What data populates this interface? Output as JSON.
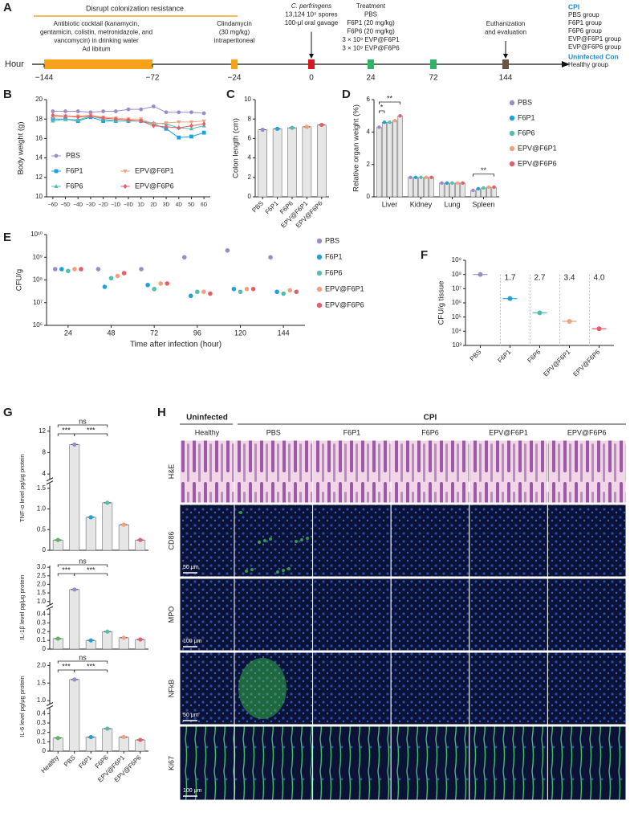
{
  "panel_labels": [
    "A",
    "B",
    "C",
    "D",
    "E",
    "F",
    "G",
    "H"
  ],
  "timeline": {
    "axis_label": "Hour",
    "ticks": [
      {
        "value": -144,
        "label": "−144"
      },
      {
        "value": -72,
        "label": "−72"
      },
      {
        "value": -24,
        "label": "−24"
      },
      0,
      24,
      72,
      144
    ],
    "phase": {
      "title": "Disrupt colonization resistance",
      "range": [
        -144,
        -72
      ],
      "color": "#f5a31a",
      "lines": [
        "Antibiotic cocktail (kanamycin,",
        "gentamicin, colistin, metronidazole, and",
        "vancomycin) in drinking water",
        "Ad libitum"
      ]
    },
    "events": [
      {
        "hour": -24,
        "color": "#f5a31a",
        "lines": [
          "Clindamycin",
          "(30 mg/kg)",
          "intraperitoneal"
        ]
      },
      {
        "hour": 0,
        "color": "#d7191c",
        "lines": [
          "C. perfringens",
          "13,124 10⁹ spores",
          "100-μl oral gavage"
        ]
      },
      {
        "hour": 24,
        "color": "#2fb36b",
        "lines": [
          "Treatment",
          "PBS",
          "F6P1 (20 mg/kg)",
          "F6P6 (20 mg/kg)",
          "3 × 10⁹ EVP@F6P1",
          "3 × 10⁹ EVP@F6P6"
        ]
      },
      {
        "hour": 72,
        "color": "#2fb36b"
      },
      {
        "hour": 144,
        "color": "#6b5443",
        "lines": [
          "Euthanization",
          "and evaluation"
        ]
      }
    ],
    "legend": [
      {
        "heading": "CPI",
        "color": "#1a8bd0",
        "items": [
          "PBS group",
          "F6P1 group",
          "F6P6 group",
          "EVP@F6P1 group",
          "EVP@F6P6 group"
        ]
      },
      {
        "heading": "Uninfected Con",
        "color": "#1a8bd0",
        "items": [
          "Healthy group"
        ]
      }
    ]
  },
  "chart_data": [
    {
      "type": "line",
      "y_label": "Body weight (g)",
      "categories": [
        "−6D",
        "−5D",
        "−4D",
        "−3D",
        "−2D",
        "−1D",
        "−0D",
        "1D",
        "2D",
        "3D",
        "4D",
        "5D",
        "6D"
      ],
      "ylim": [
        10,
        20
      ],
      "yticks": [
        10,
        12,
        14,
        16,
        18,
        20
      ],
      "series": [
        {
          "name": "PBS",
          "color": "#9d8bc9",
          "marker": "circle",
          "values": [
            18.8,
            18.8,
            18.8,
            18.7,
            18.8,
            18.8,
            19.0,
            19.0,
            19.3,
            18.7,
            18.7,
            18.7,
            18.6
          ]
        },
        {
          "name": "F6P1",
          "color": "#1fa2dc",
          "marker": "square",
          "values": [
            18.0,
            18.0,
            17.8,
            18.2,
            17.8,
            17.8,
            17.8,
            17.8,
            17.5,
            17.0,
            16.1,
            16.2,
            16.6
          ]
        },
        {
          "name": "F6P6",
          "color": "#52bdb0",
          "marker": "triangle",
          "values": [
            17.8,
            18.0,
            17.9,
            18.3,
            18.0,
            17.8,
            17.8,
            17.8,
            17.6,
            17.5,
            17.1,
            17.0,
            17.3
          ]
        },
        {
          "name": "EPV@F6P1",
          "color": "#f3a07c",
          "marker": "triangle-down",
          "values": [
            18.2,
            18.3,
            18.3,
            18.4,
            18.2,
            18.1,
            18.0,
            18.0,
            17.5,
            17.6,
            17.7,
            17.7,
            17.8
          ]
        },
        {
          "name": "EPV@F6P6",
          "color": "#e35f6a",
          "marker": "diamond",
          "values": [
            18.4,
            18.3,
            18.2,
            18.3,
            18.1,
            18.0,
            17.9,
            17.8,
            17.3,
            17.2,
            17.1,
            17.3,
            17.5
          ]
        }
      ]
    },
    {
      "type": "bar",
      "y_label": "Colon length (cm)",
      "categories": [
        "PBS",
        "F6P1",
        "F6P6",
        "EPV@F6P1",
        "EPV@F6P6"
      ],
      "values": [
        6.9,
        7.0,
        7.1,
        7.2,
        7.4
      ],
      "colors": [
        "#9d8bc9",
        "#1fa2dc",
        "#52bdb0",
        "#f3a07c",
        "#e35f6a"
      ],
      "ylim": [
        0,
        10
      ],
      "yticks": [
        0,
        2,
        4,
        6,
        8,
        10
      ]
    },
    {
      "type": "bar",
      "y_label": "Relative organ weight (%)",
      "categories": [
        "Liver",
        "Kidney",
        "Lung",
        "Spleen"
      ],
      "ylim": [
        0,
        6
      ],
      "yticks": [
        0,
        2,
        4,
        6
      ],
      "annotations": [
        "*",
        "**",
        "**"
      ],
      "series": [
        {
          "name": "PBS",
          "color": "#9d8bc9",
          "values": [
            4.3,
            1.2,
            0.85,
            0.4
          ]
        },
        {
          "name": "F6P1",
          "color": "#1fa2dc",
          "values": [
            4.6,
            1.2,
            0.85,
            0.5
          ]
        },
        {
          "name": "F6P6",
          "color": "#52bdb0",
          "values": [
            4.6,
            1.2,
            0.85,
            0.55
          ]
        },
        {
          "name": "EPV@F6P1",
          "color": "#f3a07c",
          "values": [
            4.7,
            1.2,
            0.85,
            0.6
          ]
        },
        {
          "name": "EPV@F6P6",
          "color": "#e35f6a",
          "values": [
            5.0,
            1.2,
            0.85,
            0.6
          ]
        }
      ]
    },
    {
      "type": "scatter",
      "y_label": "CFU/g",
      "x_label": "Time after infection (hour)",
      "categories": [
        24,
        48,
        72,
        96,
        120,
        144
      ],
      "log": true,
      "ylim": [
        1000000.0,
        10000000000.0
      ],
      "yticks": [
        {
          "value": 1000000.0,
          "label": "10⁶"
        },
        {
          "value": 10000000.0,
          "label": "10⁷"
        },
        {
          "value": 100000000.0,
          "label": "10⁸"
        },
        {
          "value": 1000000000.0,
          "label": "10⁹"
        },
        {
          "value": 10000000000.0,
          "label": "10¹⁰"
        }
      ],
      "series": [
        {
          "name": "PBS",
          "color": "#9d8bc9",
          "values": [
            300000000.0,
            300000000.0,
            300000000.0,
            1000000000.0,
            2000000000.0,
            1000000000.0
          ]
        },
        {
          "name": "F6P1",
          "color": "#1fa2dc",
          "values": [
            300000000.0,
            50000000.0,
            60000000.0,
            20000000.0,
            40000000.0,
            30000000.0
          ]
        },
        {
          "name": "F6P6",
          "color": "#52bdb0",
          "values": [
            250000000.0,
            120000000.0,
            40000000.0,
            30000000.0,
            30000000.0,
            25000000.0
          ]
        },
        {
          "name": "EPV@F6P1",
          "color": "#f3a07c",
          "values": [
            300000000.0,
            150000000.0,
            70000000.0,
            30000000.0,
            40000000.0,
            35000000.0
          ]
        },
        {
          "name": "EPV@F6P6",
          "color": "#e35f6a",
          "values": [
            300000000.0,
            200000000.0,
            70000000.0,
            25000000.0,
            40000000.0,
            30000000.0
          ]
        }
      ]
    },
    {
      "type": "scatter",
      "y_label": "CFU/g tissue",
      "categories": [
        "PBS",
        "F6P1",
        "F6P6",
        "EPV@F6P1",
        "EPV@F6P6"
      ],
      "log": true,
      "ylim": [
        1000,
        1000000000.0
      ],
      "yticks": [
        {
          "value": 1000,
          "label": "10³"
        },
        {
          "value": 10000.0,
          "label": "10⁴"
        },
        {
          "value": 100000.0,
          "label": "10⁵"
        },
        {
          "value": 1000000.0,
          "label": "10⁶"
        },
        {
          "value": 10000000.0,
          "label": "10⁷"
        },
        {
          "value": 100000000.0,
          "label": "10⁸"
        },
        {
          "value": 1000000000.0,
          "label": "10⁹"
        }
      ],
      "values": [
        100000000.0,
        2000000.0,
        200000.0,
        50000.0,
        15000.0
      ],
      "colors": [
        "#9d8bc9",
        "#1fa2dc",
        "#52bdb0",
        "#f3a07c",
        "#e35f6a"
      ],
      "annotations": [
        "1.7",
        "2.7",
        "3.4",
        "4.0"
      ]
    },
    {
      "type": "bar",
      "y_label": "TNF-α level pg/μg protein",
      "ylim": [
        [
          0,
          1.6
        ],
        [
          3,
          13
        ]
      ],
      "yticks": [
        0,
        0.5,
        {
          "value": 1,
          "label": "1.0"
        },
        1.5,
        4,
        8,
        12
      ],
      "values": [
        0.25,
        9.5,
        0.8,
        1.15,
        0.62,
        0.25
      ],
      "colors": [
        "#5cb85c",
        "#9d8bc9",
        "#1fa2dc",
        "#52bdb0",
        "#f3a07c",
        "#e35f6a"
      ],
      "annotations": [
        "***",
        "***",
        "ns"
      ]
    },
    {
      "type": "bar",
      "y_label": "IL-1β level pg/μg protein",
      "ylim": [
        [
          0,
          0.45
        ],
        [
          0.8,
          3.1
        ]
      ],
      "yticks": [
        0,
        0.1,
        0.2,
        0.3,
        0.4,
        {
          "value": 1,
          "label": "1.0"
        },
        1.5,
        {
          "value": 2,
          "label": "2.0"
        },
        2.5,
        {
          "value": 3,
          "label": "3.0"
        }
      ],
      "values": [
        0.12,
        1.7,
        0.1,
        0.2,
        0.13,
        0.11
      ],
      "colors": [
        "#5cb85c",
        "#9d8bc9",
        "#1fa2dc",
        "#52bdb0",
        "#f3a07c",
        "#e35f6a"
      ],
      "annotations": [
        "***",
        "***",
        "ns"
      ]
    },
    {
      "type": "bar",
      "y_label": "IL-6 level pg/μg protein",
      "categories": [
        "Healthy",
        "PBS",
        "F6P1",
        "F6P6",
        "EPV@F6P1",
        "EPV@F6P6"
      ],
      "ylim": [
        [
          0,
          0.45
        ],
        [
          0.9,
          2.1
        ]
      ],
      "yticks": [
        0,
        0.1,
        0.2,
        0.3,
        0.4,
        {
          "value": 1,
          "label": "1.0"
        },
        1.5,
        {
          "value": 2,
          "label": "2.0"
        }
      ],
      "values": [
        0.14,
        1.6,
        0.15,
        0.24,
        0.15,
        0.12
      ],
      "colors": [
        "#5cb85c",
        "#9d8bc9",
        "#1fa2dc",
        "#52bdb0",
        "#f3a07c",
        "#e35f6a"
      ],
      "annotations": [
        "***",
        "***",
        "ns"
      ]
    }
  ],
  "histology": {
    "headers": [
      "Uninfected",
      "CPI"
    ],
    "columns": [
      "Healthy",
      "PBS",
      "F6P1",
      "F6P6",
      "EPV@F6P1",
      "EPV@F6P6"
    ],
    "rows": [
      "H&E",
      "CD86",
      "MPO",
      "NFkB",
      "Ki67"
    ],
    "scale_bars": [
      "50 μm",
      "100 μm",
      "50 μm",
      "100 μm"
    ]
  }
}
